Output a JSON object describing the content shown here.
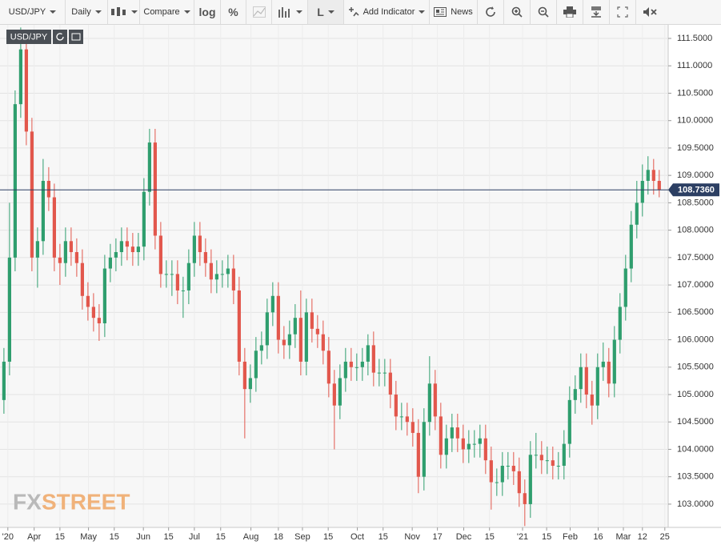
{
  "toolbar": {
    "symbol": "USD/JPY",
    "interval": "Daily",
    "compare": "Compare",
    "log": "log",
    "percent": "%",
    "line_mode": "L",
    "add_indicator": "Add Indicator",
    "news": "News"
  },
  "watermark": {
    "prefix": "FX",
    "suffix": "STREET"
  },
  "chart_data": {
    "type": "candlestick",
    "symbol": "USD/JPY",
    "up_color": "#2f9e6e",
    "down_color": "#e2574c",
    "grid": true,
    "x": [
      0,
      1,
      2,
      3,
      4,
      5,
      6,
      7,
      8,
      9,
      10,
      11,
      12,
      13,
      14,
      15,
      16,
      17,
      18,
      19,
      20,
      21,
      22,
      23,
      24,
      25,
      26,
      27,
      28,
      29,
      30,
      31,
      32,
      33,
      34,
      35,
      36,
      37,
      38,
      39,
      40,
      41,
      42,
      43,
      44,
      45,
      46,
      47,
      48,
      49,
      50,
      51,
      52,
      53,
      54,
      55,
      56,
      57,
      58,
      59,
      60,
      61,
      62,
      63,
      64,
      65,
      66,
      67,
      68,
      69,
      70,
      71,
      72,
      73,
      74,
      75,
      76,
      77,
      78,
      79,
      80,
      81,
      82,
      83,
      84,
      85,
      86,
      87,
      88,
      89,
      90,
      91,
      92,
      93,
      94,
      95,
      96,
      97,
      98,
      99,
      100,
      101,
      102,
      103,
      104,
      105,
      106,
      107,
      108,
      109,
      110,
      111,
      112,
      113,
      114,
      115,
      116,
      117
    ],
    "open": [
      104.9,
      105.6,
      107.5,
      110.3,
      111.3,
      109.8,
      107.5,
      107.8,
      108.9,
      108.6,
      107.5,
      107.4,
      107.8,
      107.6,
      107.4,
      106.8,
      106.6,
      106.4,
      106.3,
      107.3,
      107.5,
      107.6,
      107.8,
      107.7,
      107.6,
      107.7,
      108.7,
      109.6,
      107.9,
      107.2,
      107.2,
      107.2,
      106.9,
      106.9,
      107.4,
      107.9,
      107.6,
      107.4,
      107.1,
      107.2,
      107.2,
      107.3,
      106.9,
      105.6,
      105.1,
      105.3,
      105.8,
      105.9,
      106.5,
      106.8,
      106.0,
      105.9,
      106.1,
      106.4,
      105.6,
      106.5,
      106.2,
      106.1,
      105.8,
      105.2,
      104.8,
      105.3,
      105.6,
      105.5,
      105.5,
      105.6,
      105.9,
      105.4,
      105.4,
      105.4,
      105.0,
      104.6,
      104.6,
      104.5,
      104.3,
      103.5,
      104.5,
      105.2,
      104.6,
      103.9,
      104.2,
      104.4,
      104.2,
      104.0,
      104.1,
      104.1,
      104.2,
      103.8,
      103.4,
      103.4,
      103.7,
      103.7,
      103.6,
      103.2,
      103.0,
      103.9,
      103.9,
      103.8,
      103.8,
      103.7,
      103.7,
      104.1,
      104.9,
      105.1,
      105.5,
      105.0,
      104.8,
      105.5,
      105.6,
      105.2,
      106.0,
      106.6,
      107.3,
      108.1,
      108.5,
      108.9,
      109.1,
      108.9
    ],
    "high": [
      105.85,
      108.5,
      110.55,
      111.7,
      111.55,
      110.05,
      108.05,
      109.3,
      109.15,
      108.85,
      107.75,
      108.05,
      108.05,
      107.85,
      107.65,
      107.05,
      106.85,
      106.65,
      107.55,
      107.75,
      107.85,
      108.05,
      108.05,
      107.95,
      107.95,
      108.95,
      109.85,
      109.85,
      108.15,
      107.45,
      107.45,
      107.45,
      107.15,
      107.65,
      108.15,
      108.15,
      107.85,
      107.65,
      107.45,
      107.45,
      107.55,
      107.55,
      107.15,
      105.85,
      105.55,
      106.05,
      106.15,
      106.75,
      107.05,
      107.05,
      106.25,
      106.35,
      106.65,
      106.9,
      106.75,
      106.75,
      106.45,
      106.35,
      106.05,
      105.45,
      105.55,
      105.85,
      105.85,
      105.75,
      105.85,
      106.1,
      106.15,
      105.65,
      105.65,
      105.65,
      105.25,
      104.85,
      104.85,
      104.75,
      104.55,
      104.75,
      105.7,
      105.45,
      104.85,
      104.45,
      104.65,
      104.65,
      104.45,
      104.35,
      104.35,
      104.45,
      104.45,
      104.05,
      103.65,
      103.95,
      103.95,
      103.95,
      103.85,
      103.45,
      104.15,
      104.3,
      104.15,
      104.05,
      104.05,
      103.95,
      104.35,
      105.15,
      105.35,
      105.75,
      105.75,
      105.25,
      105.75,
      105.95,
      105.85,
      106.25,
      106.85,
      107.55,
      108.35,
      108.9,
      109.2,
      109.35,
      109.3,
      109.1
    ],
    "low": [
      104.65,
      105.35,
      107.25,
      110.05,
      109.55,
      107.25,
      106.95,
      107.55,
      108.35,
      107.25,
      107.0,
      107.15,
      107.35,
      107.15,
      106.55,
      106.35,
      106.15,
      105.98,
      106.05,
      107.05,
      107.25,
      107.35,
      107.45,
      107.35,
      107.35,
      107.45,
      108.45,
      107.65,
      106.95,
      106.95,
      106.8,
      106.65,
      106.4,
      106.65,
      107.15,
      107.35,
      107.15,
      106.85,
      106.85,
      106.95,
      106.95,
      106.65,
      105.35,
      104.2,
      104.85,
      105.05,
      105.55,
      105.65,
      106.25,
      105.75,
      105.65,
      105.65,
      105.85,
      105.35,
      105.35,
      105.95,
      105.85,
      105.55,
      104.95,
      104.0,
      104.55,
      105.05,
      105.25,
      105.25,
      105.25,
      105.35,
      105.15,
      105.15,
      105.15,
      104.75,
      104.35,
      104.35,
      104.25,
      104.05,
      103.2,
      103.25,
      104.25,
      104.35,
      103.65,
      103.65,
      103.95,
      103.95,
      103.75,
      103.75,
      103.85,
      103.85,
      103.55,
      102.9,
      103.15,
      103.15,
      103.45,
      103.35,
      102.95,
      102.6,
      102.75,
      103.65,
      103.55,
      103.55,
      103.45,
      103.45,
      103.45,
      103.85,
      104.65,
      104.85,
      104.75,
      104.45,
      104.55,
      105.25,
      104.95,
      104.95,
      105.75,
      106.35,
      107.05,
      107.85,
      108.25,
      108.65,
      108.65,
      108.6
    ],
    "close": [
      105.6,
      107.5,
      110.3,
      111.3,
      109.8,
      107.5,
      107.8,
      108.9,
      108.6,
      107.5,
      107.4,
      107.8,
      107.6,
      107.4,
      106.8,
      106.6,
      106.4,
      106.3,
      107.3,
      107.5,
      107.6,
      107.8,
      107.7,
      107.6,
      107.7,
      108.7,
      109.6,
      107.9,
      107.2,
      107.2,
      107.2,
      106.9,
      106.9,
      107.4,
      107.9,
      107.6,
      107.4,
      107.1,
      107.2,
      107.2,
      107.3,
      106.9,
      105.6,
      105.1,
      105.3,
      105.8,
      105.9,
      106.5,
      106.8,
      106.0,
      105.9,
      106.1,
      106.4,
      105.6,
      106.5,
      106.2,
      106.1,
      105.8,
      105.2,
      104.8,
      105.3,
      105.6,
      105.5,
      105.5,
      105.6,
      105.9,
      105.4,
      105.4,
      105.4,
      105.0,
      104.6,
      104.6,
      104.5,
      104.3,
      103.5,
      104.5,
      105.2,
      104.6,
      103.9,
      104.2,
      104.4,
      104.2,
      104.0,
      104.1,
      104.1,
      104.2,
      103.8,
      103.4,
      103.4,
      103.7,
      103.7,
      103.6,
      103.2,
      103.0,
      103.9,
      103.9,
      103.8,
      103.8,
      103.7,
      103.7,
      104.1,
      104.9,
      105.1,
      105.5,
      105.0,
      104.8,
      105.5,
      105.6,
      105.2,
      106.0,
      106.6,
      107.3,
      108.1,
      108.5,
      108.9,
      109.1,
      108.9,
      108.74
    ],
    "xlim": [
      -0.7,
      118.6
    ],
    "xticks": [
      {
        "value": 0.7,
        "label": "'20"
      },
      {
        "value": 5.4,
        "label": "Apr"
      },
      {
        "value": 10,
        "label": "15"
      },
      {
        "value": 15.1,
        "label": "May"
      },
      {
        "value": 19.7,
        "label": "15"
      },
      {
        "value": 24.9,
        "label": "Jun"
      },
      {
        "value": 29.4,
        "label": "15"
      },
      {
        "value": 34,
        "label": "Jul"
      },
      {
        "value": 38.7,
        "label": "15"
      },
      {
        "value": 44.1,
        "label": "Aug"
      },
      {
        "value": 49,
        "label": "18"
      },
      {
        "value": 53.3,
        "label": "Sep"
      },
      {
        "value": 57.9,
        "label": "15"
      },
      {
        "value": 63.1,
        "label": "Oct"
      },
      {
        "value": 67.7,
        "label": "15"
      },
      {
        "value": 72.9,
        "label": "Nov"
      },
      {
        "value": 77.4,
        "label": "17"
      },
      {
        "value": 82.1,
        "label": "Dec"
      },
      {
        "value": 86.7,
        "label": "15"
      },
      {
        "value": 92.6,
        "label": "'21"
      },
      {
        "value": 96.9,
        "label": "15"
      },
      {
        "value": 101.1,
        "label": "Feb"
      },
      {
        "value": 106.1,
        "label": "16"
      },
      {
        "value": 110.6,
        "label": "Mar"
      },
      {
        "value": 114,
        "label": "12"
      },
      {
        "value": 118,
        "label": "25"
      }
    ],
    "ylim": [
      102.59,
      111.69
    ],
    "yticks": [
      {
        "value": 103,
        "label": "103.0000"
      },
      {
        "value": 103.5,
        "label": "103.5000"
      },
      {
        "value": 104,
        "label": "104.0000"
      },
      {
        "value": 104.5,
        "label": "104.5000"
      },
      {
        "value": 105,
        "label": "105.0000"
      },
      {
        "value": 105.5,
        "label": "105.5000"
      },
      {
        "value": 106,
        "label": "106.0000"
      },
      {
        "value": 106.5,
        "label": "106.5000"
      },
      {
        "value": 107,
        "label": "107.0000"
      },
      {
        "value": 107.5,
        "label": "107.5000"
      },
      {
        "value": 108,
        "label": "108.0000"
      },
      {
        "value": 108.5,
        "label": "108.5000"
      },
      {
        "value": 109,
        "label": "109.0000"
      },
      {
        "value": 109.5,
        "label": "109.5000"
      },
      {
        "value": 110,
        "label": "110.0000"
      },
      {
        "value": 110.5,
        "label": "110.5000"
      },
      {
        "value": 111,
        "label": "111.0000"
      },
      {
        "value": 111.5,
        "label": "111.5000"
      }
    ],
    "last_price": {
      "value": 108.736,
      "label": "108.7360"
    },
    "last_price_color": "#2c3f63"
  }
}
